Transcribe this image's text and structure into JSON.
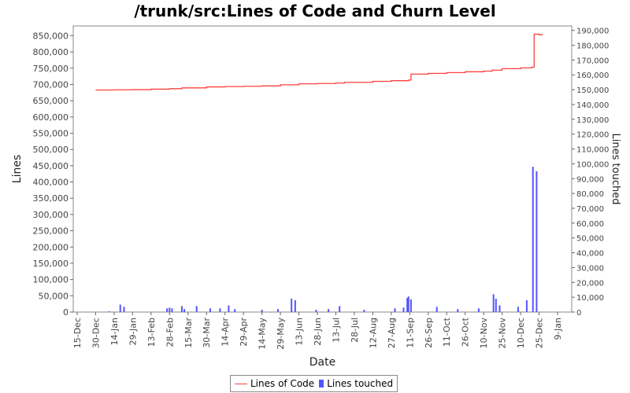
{
  "chart_data": {
    "type": "line+bar",
    "title": "/trunk/src:Lines of Code and Churn Level",
    "xlabel": "Date",
    "ylabel": "Lines",
    "y2label": "Lines touched",
    "x_ticks": [
      "15-Dec",
      "30-Dec",
      "14-Jan",
      "29-Jan",
      "13-Feb",
      "28-Feb",
      "15-Mar",
      "30-Mar",
      "14-Apr",
      "29-Apr",
      "14-May",
      "29-May",
      "13-Jun",
      "28-Jun",
      "13-Jul",
      "28-Jul",
      "12-Aug",
      "27-Aug",
      "11-Sep",
      "26-Sep",
      "11-Oct",
      "26-Oct",
      "10-Nov",
      "25-Nov",
      "10-Dec",
      "25-Dec",
      "9-Jan"
    ],
    "ylim": [
      0,
      880000
    ],
    "y_ticks": [
      "0",
      "50,000",
      "100,000",
      "150,000",
      "200,000",
      "250,000",
      "300,000",
      "350,000",
      "400,000",
      "450,000",
      "500,000",
      "550,000",
      "600,000",
      "650,000",
      "700,000",
      "750,000",
      "800,000",
      "850,000"
    ],
    "y2lim": [
      0,
      193000
    ],
    "y2_ticks": [
      "0",
      "10,000",
      "20,000",
      "30,000",
      "40,000",
      "50,000",
      "60,000",
      "70,000",
      "80,000",
      "90,000",
      "100,000",
      "110,000",
      "120,000",
      "130,000",
      "140,000",
      "150,000",
      "160,000",
      "170,000",
      "180,000",
      "190,000"
    ],
    "grid": false,
    "legend_position": "bottom",
    "series": [
      {
        "name": "Lines of Code",
        "kind": "line",
        "color": "#ff4040",
        "axis": "left",
        "points": [
          [
            "30-Dec",
            683000
          ],
          [
            "14-Jan",
            683500
          ],
          [
            "29-Jan",
            684000
          ],
          [
            "13-Feb",
            685500
          ],
          [
            "28-Feb",
            687000
          ],
          [
            "10-Mar",
            689500
          ],
          [
            "30-Mar",
            692500
          ],
          [
            "14-Apr",
            693500
          ],
          [
            "29-Apr",
            694500
          ],
          [
            "14-May",
            695500
          ],
          [
            "29-May",
            699000
          ],
          [
            "13-Jun",
            702000
          ],
          [
            "28-Jun",
            703000
          ],
          [
            "13-Jul",
            704500
          ],
          [
            "20-Jul",
            706500
          ],
          [
            "12-Aug",
            709500
          ],
          [
            "27-Aug",
            711500
          ],
          [
            "10-Sep",
            713500
          ],
          [
            "12-Sep",
            732000
          ],
          [
            "26-Sep",
            734000
          ],
          [
            "11-Oct",
            736500
          ],
          [
            "26-Oct",
            739000
          ],
          [
            "10-Nov",
            741000
          ],
          [
            "17-Nov",
            744000
          ],
          [
            "25-Nov",
            748500
          ],
          [
            "10-Dec",
            751000
          ],
          [
            "19-Dec",
            753000
          ],
          [
            "21-Dec",
            855000
          ],
          [
            "25-Dec",
            853000
          ],
          [
            "28-Dec",
            853000
          ]
        ]
      },
      {
        "name": "Lines touched",
        "kind": "bar",
        "color": "#5555ff",
        "axis": "right",
        "points": [
          [
            "10-Jan",
            500
          ],
          [
            "19-Jan",
            5000
          ],
          [
            "22-Jan",
            3500
          ],
          [
            "26-Feb",
            2500
          ],
          [
            "28-Feb",
            3000
          ],
          [
            "2-Mar",
            2500
          ],
          [
            "10-Mar",
            4000
          ],
          [
            "12-Mar",
            2000
          ],
          [
            "22-Mar",
            4000
          ],
          [
            "2-Apr",
            2500
          ],
          [
            "10-Apr",
            2500
          ],
          [
            "17-Apr",
            4500
          ],
          [
            "22-Apr",
            2000
          ],
          [
            "14-May",
            1500
          ],
          [
            "27-May",
            2000
          ],
          [
            "7-Jun",
            9000
          ],
          [
            "10-Jun",
            8000
          ],
          [
            "27-Jun",
            1500
          ],
          [
            "7-Jul",
            2000
          ],
          [
            "16-Jul",
            4000
          ],
          [
            "5-Aug",
            1500
          ],
          [
            "30-Aug",
            2500
          ],
          [
            "6-Sep",
            3000
          ],
          [
            "9-Sep",
            9500
          ],
          [
            "10-Sep",
            10500
          ],
          [
            "12-Sep",
            8500
          ],
          [
            "3-Oct",
            3500
          ],
          [
            "20-Oct",
            2000
          ],
          [
            "6-Nov",
            2500
          ],
          [
            "18-Nov",
            12000
          ],
          [
            "20-Nov",
            9000
          ],
          [
            "23-Nov",
            4500
          ],
          [
            "8-Dec",
            3500
          ],
          [
            "15-Dec",
            8000
          ],
          [
            "20-Dec",
            98000
          ],
          [
            "23-Dec",
            95000
          ]
        ]
      }
    ]
  }
}
